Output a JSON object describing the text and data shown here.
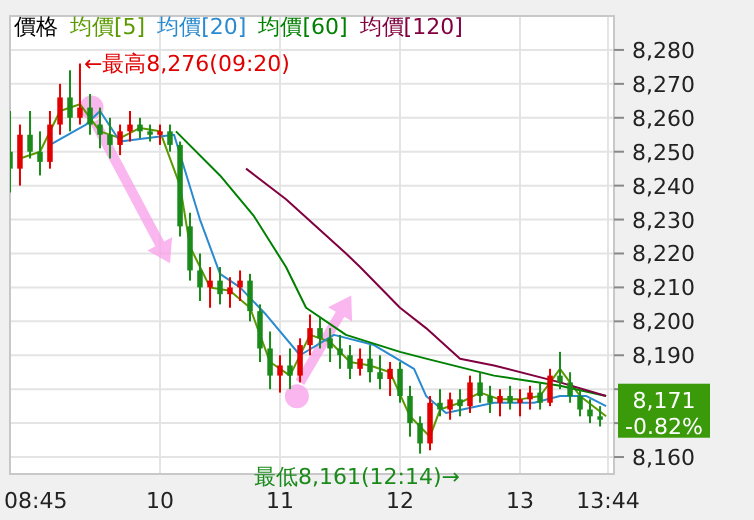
{
  "chart_data": {
    "type": "candlestick",
    "xlim": [
      8.75,
      13.783
    ],
    "ylim": [
      8155,
      8290
    ],
    "xticks": [
      {
        "value": 8.75,
        "label": "08:45"
      },
      10,
      11,
      12,
      13,
      {
        "value": 13.733,
        "label": "13:44"
      }
    ],
    "yticks": [
      {
        "value": 8160,
        "label": "8,160"
      },
      {
        "value": 8170,
        "label": null
      },
      {
        "value": 8180,
        "label": null
      },
      {
        "value": 8190,
        "label": "8,190"
      },
      {
        "value": 8200,
        "label": "8,200"
      },
      {
        "value": 8210,
        "label": "8,210"
      },
      {
        "value": 8220,
        "label": "8,220"
      },
      {
        "value": 8230,
        "label": "8,230"
      },
      {
        "value": 8240,
        "label": "8,240"
      },
      {
        "value": 8250,
        "label": "8,250"
      },
      {
        "value": 8260,
        "label": "8,260"
      },
      {
        "value": 8270,
        "label": "8,270"
      },
      {
        "value": 8280,
        "label": "8,280"
      }
    ],
    "grid": true,
    "legend": "top left",
    "series": [
      {
        "name": "價格",
        "type": "candlestick",
        "x": [
          8.75,
          8.833,
          8.917,
          9,
          9.083,
          9.167,
          9.25,
          9.333,
          9.417,
          9.5,
          9.583,
          9.667,
          9.75,
          9.833,
          9.917,
          10,
          10.083,
          10.167,
          10.25,
          10.333,
          10.417,
          10.5,
          10.583,
          10.667,
          10.75,
          10.833,
          10.917,
          11,
          11.083,
          11.167,
          11.25,
          11.333,
          11.417,
          11.5,
          11.583,
          11.667,
          11.75,
          11.833,
          11.917,
          12,
          12.083,
          12.167,
          12.25,
          12.333,
          12.417,
          12.5,
          12.583,
          12.667,
          12.75,
          12.833,
          12.917,
          13,
          13.083,
          13.167,
          13.25,
          13.333,
          13.417,
          13.5,
          13.583,
          13.667
        ],
        "ohlc": [
          [
            8250,
            8262,
            8238,
            8245
          ],
          [
            8245,
            8258,
            8240,
            8255
          ],
          [
            8255,
            8262,
            8248,
            8250
          ],
          [
            8250,
            8256,
            8243,
            8247
          ],
          [
            8247,
            8262,
            8245,
            8258
          ],
          [
            8258,
            8270,
            8255,
            8266
          ],
          [
            8266,
            8274,
            8256,
            8260
          ],
          [
            8260,
            8276,
            8258,
            8263
          ],
          [
            8263,
            8267,
            8255,
            8258
          ],
          [
            8258,
            8263,
            8251,
            8255
          ],
          [
            8255,
            8260,
            8248,
            8252
          ],
          [
            8252,
            8258,
            8249,
            8256
          ],
          [
            8256,
            8262,
            8253,
            8258
          ],
          [
            8258,
            8260,
            8254,
            8256
          ],
          [
            8256,
            8258,
            8253,
            8255
          ],
          [
            8255,
            8258,
            8252,
            8256
          ],
          [
            8256,
            8258,
            8250,
            8252
          ],
          [
            8252,
            8253,
            8225,
            8228
          ],
          [
            8228,
            8232,
            8212,
            8215
          ],
          [
            8215,
            8220,
            8206,
            8210
          ],
          [
            8210,
            8216,
            8204,
            8212
          ],
          [
            8212,
            8216,
            8205,
            8208
          ],
          [
            8208,
            8213,
            8204,
            8210
          ],
          [
            8210,
            8215,
            8206,
            8212
          ],
          [
            8212,
            8214,
            8200,
            8203
          ],
          [
            8203,
            8205,
            8188,
            8192
          ],
          [
            8192,
            8197,
            8180,
            8184
          ],
          [
            8184,
            8190,
            8179,
            8187
          ],
          [
            8187,
            8192,
            8180,
            8184
          ],
          [
            8184,
            8195,
            8182,
            8193
          ],
          [
            8193,
            8202,
            8190,
            8198
          ],
          [
            8198,
            8201,
            8192,
            8195
          ],
          [
            8195,
            8198,
            8188,
            8192
          ],
          [
            8192,
            8196,
            8186,
            8190
          ],
          [
            8190,
            8193,
            8183,
            8186
          ],
          [
            8186,
            8192,
            8184,
            8189
          ],
          [
            8189,
            8193,
            8182,
            8185
          ],
          [
            8185,
            8190,
            8180,
            8183
          ],
          [
            8183,
            8188,
            8178,
            8186
          ],
          [
            8186,
            8188,
            8176,
            8178
          ],
          [
            8178,
            8181,
            8166,
            8170
          ],
          [
            8170,
            8172,
            8161,
            8164
          ],
          [
            8164,
            8178,
            8162,
            8176
          ],
          [
            8176,
            8180,
            8172,
            8174
          ],
          [
            8174,
            8179,
            8171,
            8177
          ],
          [
            8177,
            8180,
            8172,
            8175
          ],
          [
            8175,
            8184,
            8173,
            8182
          ],
          [
            8182,
            8185,
            8176,
            8178
          ],
          [
            8178,
            8181,
            8173,
            8176
          ],
          [
            8176,
            8180,
            8172,
            8178
          ],
          [
            8178,
            8181,
            8174,
            8176
          ],
          [
            8176,
            8180,
            8172,
            8177
          ],
          [
            8177,
            8181,
            8174,
            8179
          ],
          [
            8179,
            8182,
            8174,
            8176
          ],
          [
            8176,
            8186,
            8175,
            8184
          ],
          [
            8184,
            8191,
            8180,
            8182
          ],
          [
            8182,
            8185,
            8176,
            8178
          ],
          [
            8178,
            8180,
            8172,
            8174
          ],
          [
            8174,
            8177,
            8170,
            8172
          ],
          [
            8172,
            8175,
            8169,
            8171
          ]
        ]
      },
      {
        "name": "均價[5]",
        "type": "line",
        "color": "#5a9a00",
        "x": [
          8.833,
          9.0,
          9.167,
          9.333,
          9.5,
          9.667,
          9.833,
          10.0,
          10.167,
          10.25,
          10.417,
          10.583,
          10.75,
          10.917,
          11.083,
          11.25,
          11.417,
          11.583,
          11.75,
          11.917,
          12.083,
          12.25,
          12.333,
          12.5,
          12.667,
          12.833,
          13.0,
          13.167,
          13.333,
          13.5,
          13.717
        ],
        "values": [
          8248,
          8250,
          8262,
          8264,
          8256,
          8254,
          8257,
          8256,
          8240,
          8222,
          8210,
          8209,
          8204,
          8188,
          8184,
          8196,
          8194,
          8188,
          8187,
          8185,
          8172,
          8166,
          8174,
          8176,
          8179,
          8177,
          8177,
          8178,
          8186,
          8178,
          8172
        ]
      },
      {
        "name": "均價[20]",
        "type": "line",
        "color": "#2a8ad0",
        "x": [
          9.083,
          9.383,
          9.5,
          9.667,
          10.117,
          10.333,
          10.5,
          10.667,
          10.883,
          11.167,
          11.45,
          11.783,
          12.117,
          12.217,
          12.383,
          12.783,
          13.117,
          13.333,
          13.55,
          13.717
        ],
        "values": [
          8252,
          8258,
          8262,
          8253,
          8255,
          8230,
          8214,
          8210,
          8202,
          8190,
          8196,
          8193,
          8186,
          8178,
          8173,
          8176,
          8176,
          8178,
          8178,
          8175
        ]
      },
      {
        "name": "均價[60]",
        "type": "line",
        "color": "#008000",
        "x": [
          10.133,
          10.5,
          10.783,
          11.05,
          11.217,
          11.55,
          12.0,
          12.217,
          12.783,
          13.333,
          13.717
        ],
        "values": [
          8256,
          8243,
          8231,
          8216,
          8204,
          8196,
          8191,
          8189,
          8184,
          8181,
          8178
        ]
      },
      {
        "name": "均價[120]",
        "type": "line",
        "color": "#800040",
        "x": [
          10.717,
          11.05,
          11.55,
          11.667,
          12.0,
          12.217,
          12.5,
          12.783,
          13.333,
          13.717
        ],
        "values": [
          8245,
          8236,
          8220,
          8216,
          8204,
          8198,
          8189,
          8187,
          8182,
          8178
        ]
      }
    ],
    "annotations": [
      {
        "text": "←最高8,276(09:20)",
        "x": 9.333,
        "y": 8276
      },
      {
        "text": "最低8,161(12:14)→",
        "x": 12.233,
        "y": 8161
      },
      {
        "text": "8,171",
        "x": 13.733,
        "y": 8171
      },
      "-0.82%"
    ]
  }
}
